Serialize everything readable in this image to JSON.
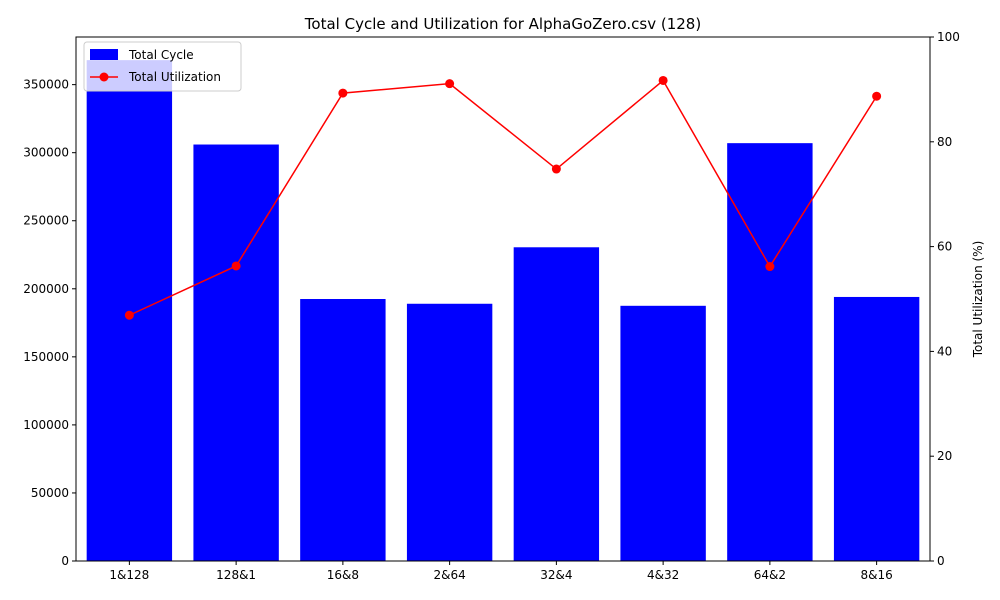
{
  "chart_data": {
    "type": "bar",
    "title": "Total Cycle and Utilization for AlphaGoZero.csv (128)",
    "xlabel": "",
    "ylabel_left": "",
    "ylabel_right": "Total Utilization (%)",
    "categories": [
      "1&128",
      "128&1",
      "16&8",
      "2&64",
      "32&4",
      "4&32",
      "64&2",
      "8&16"
    ],
    "ylim_left": [
      0,
      385000
    ],
    "ylim_right": [
      0,
      100
    ],
    "yticks_left": [
      0,
      50000,
      100000,
      150000,
      200000,
      250000,
      300000,
      350000
    ],
    "yticks_right": [
      0,
      20,
      40,
      60,
      80,
      100
    ],
    "series": [
      {
        "name": "Total Cycle",
        "kind": "bar",
        "axis": "left",
        "color": "#0000ff",
        "values": [
          368000,
          306000,
          192500,
          189000,
          230500,
          187500,
          307000,
          194000
        ]
      },
      {
        "name": "Total Utilization",
        "kind": "line",
        "axis": "right",
        "color": "#ff0000",
        "values": [
          46.9,
          56.3,
          89.3,
          91.1,
          74.8,
          91.7,
          56.2,
          88.7
        ]
      }
    ],
    "legend": "top-left",
    "grid": false
  }
}
